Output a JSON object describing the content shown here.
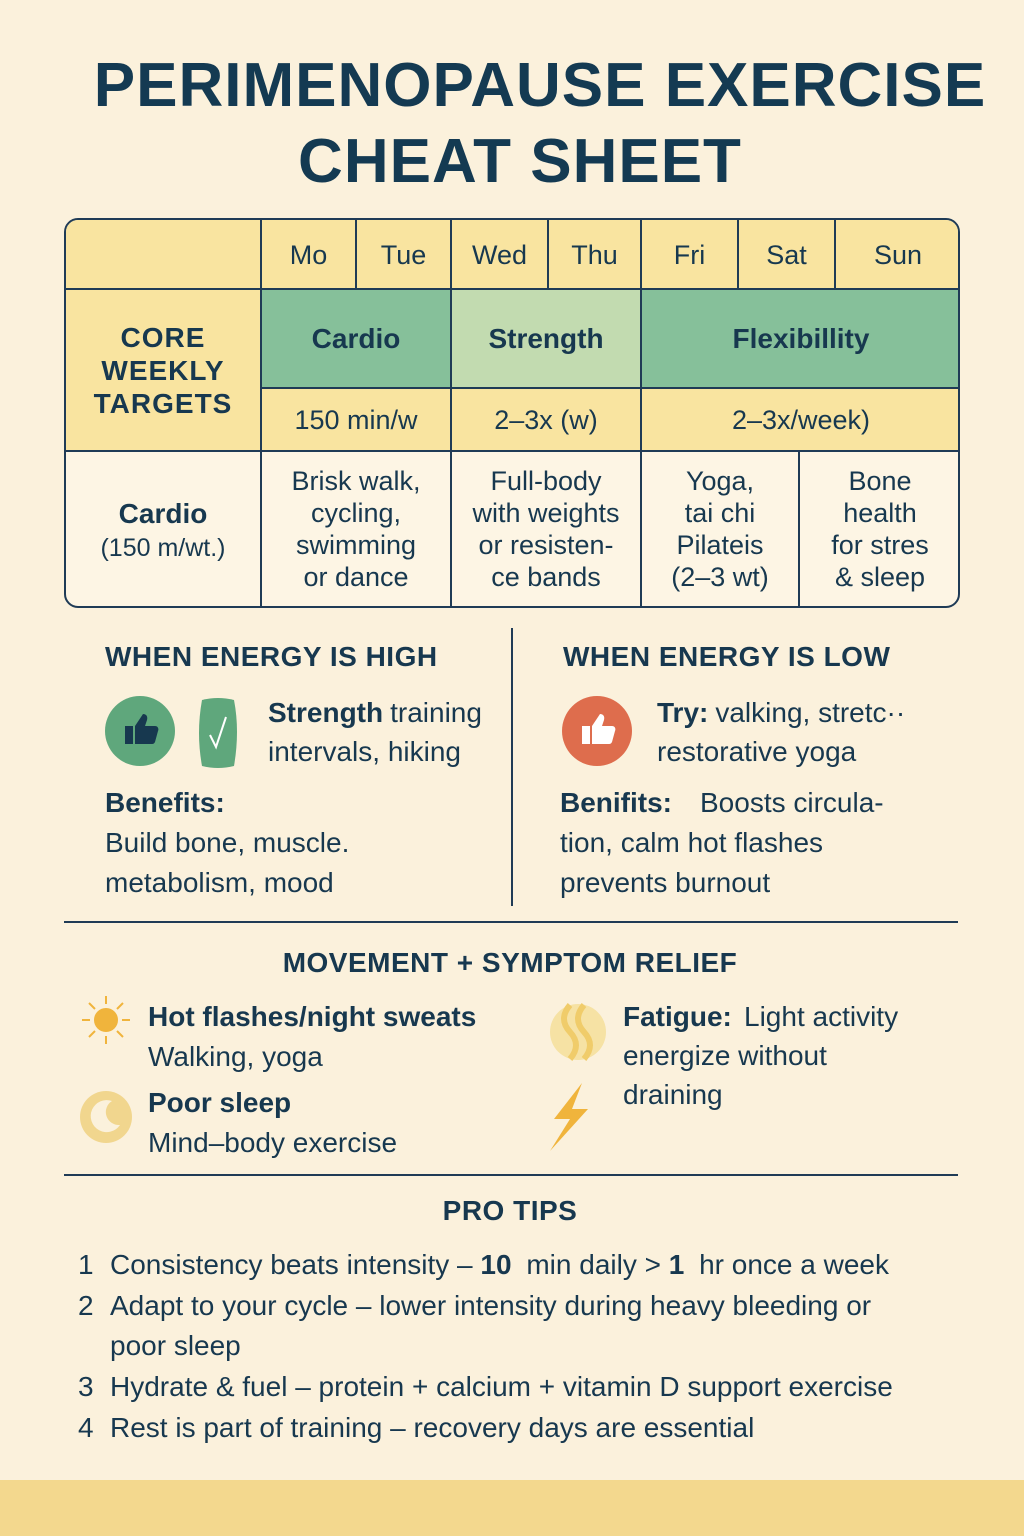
{
  "header": {
    "title_lines": [
      "PERIMENOPAUSE EXERCISE",
      "CHEAT SHEET"
    ]
  },
  "table": {
    "days": [
      "Mo",
      "Tue",
      "Wed",
      "Thu",
      "Fri",
      "Sat",
      "Sun"
    ],
    "targets_label": [
      "CORE",
      "WEEKLY",
      "TARGETS"
    ],
    "groups": [
      {
        "name": "Cardio",
        "target": "150 min/w"
      },
      {
        "name": "Strength",
        "target": "2–3x (w)"
      },
      {
        "name": "Flexibillity",
        "target": "2–3x/week)"
      }
    ],
    "row_label": "Cardio",
    "row_sublabel": "(150 m/wt.)",
    "cells": [
      [
        "Brisk walk,",
        "cycling,",
        "swimming",
        "or dance"
      ],
      [
        "Full-body",
        "with weights",
        "or resisten-",
        "ce bands"
      ],
      [
        "Yoga,",
        "tai chi",
        "Pilateis",
        "(2–3 wt)"
      ],
      [
        "Bone",
        "health",
        "for stres",
        "& sleep"
      ]
    ]
  },
  "energy_high": {
    "heading": "WHEN ENERGY IS HIGH",
    "lines": [
      [
        {
          "text": "Strength",
          "bold": true
        },
        "training"
      ],
      [
        "intervals, hiking"
      ]
    ],
    "benefits_label": "Benefits:",
    "benefits_lines": [
      "Build bone, muscle.",
      "metabolism, mood"
    ]
  },
  "energy_low": {
    "heading": "WHEN ENERGY IS LOW",
    "lines": [
      [
        {
          "text": "Try:",
          "bold": true
        },
        "valking, stretc··"
      ],
      [
        "restorative yoga"
      ]
    ],
    "benefits_label": "Benifits:",
    "benefits_lines": [
      "Boosts circula-",
      "tion, calm hot flashes",
      "prevents burnout"
    ]
  },
  "relief": {
    "heading": "MOVEMENT + SYMPTOM RELIEF",
    "hot_flashes": {
      "title": "Hot flashes/night sweats",
      "text": "Walking, yoga"
    },
    "poor_sleep": {
      "title": "Poor sleep",
      "text": "Mind–body exercise"
    },
    "fatigue": {
      "title": "Fatigue:",
      "lines": [
        "Light activity",
        "energize without",
        "draining"
      ]
    }
  },
  "pro_tips": {
    "heading": "PRO TIPS",
    "items": [
      {
        "number": "1",
        "lines": [
          [
            "Consistency beats intensity – ",
            {
              "text": "10",
              "bold": true
            },
            " min daily > ",
            {
              "text": "1",
              "bold": true
            },
            " hr once a week"
          ]
        ]
      },
      {
        "number": "2",
        "lines": [
          [
            "Adapt to your cycle – lower intensity during heavy bleeding or"
          ],
          [
            "poor sleep"
          ]
        ]
      },
      {
        "number": "3",
        "lines": [
          [
            "Hydrate & fuel – protein + calcium + vitamin D support exercise"
          ]
        ]
      },
      {
        "number": "4",
        "lines": [
          [
            "Rest is part of training – recovery days are essential"
          ]
        ]
      }
    ]
  }
}
